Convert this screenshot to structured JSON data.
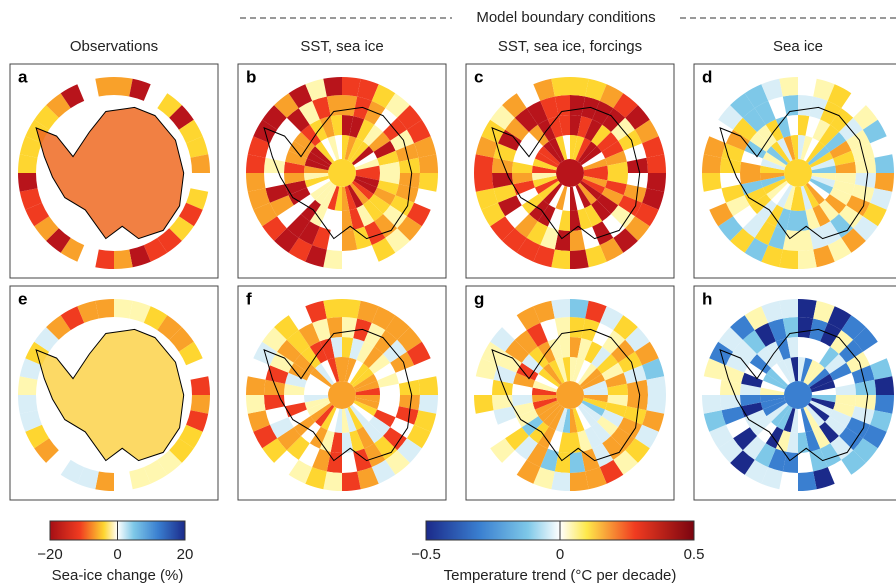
{
  "header": "Model boundary conditions",
  "columns": [
    "Observations",
    "SST, sea ice",
    "SST, sea ice, forcings",
    "Sea ice"
  ],
  "panels": [
    "a",
    "b",
    "c",
    "d",
    "e",
    "f",
    "g",
    "h"
  ],
  "colorbars": [
    {
      "label": "Sea-ice change (%)",
      "lim": [
        -20,
        20
      ],
      "ticks": [
        {
          "value": -20,
          "label": "−20"
        },
        0,
        20
      ]
    },
    {
      "label": "Temperature trend (°C per decade)",
      "lim": [
        -0.5,
        0.5
      ],
      "ticks": [
        {
          "value": -0.5,
          "label": "−0.5"
        },
        0,
        0.5
      ]
    }
  ]
}
